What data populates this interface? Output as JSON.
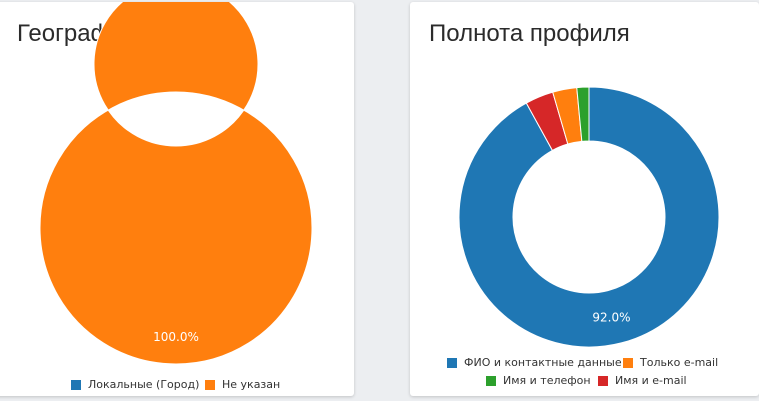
{
  "cards": [
    {
      "title": "География клиентов",
      "chart_data": {
        "type": "pie",
        "donut": true,
        "categories": [
          "Локальные (Город)",
          "Не указан"
        ],
        "values": [
          0.0,
          100.0
        ],
        "colors": [
          "#1f77b4",
          "#ff7f0e"
        ],
        "data_labels": [
          "",
          "100.0%"
        ],
        "legend": "bottom"
      }
    },
    {
      "title": "Полнота профиля",
      "chart_data": {
        "type": "pie",
        "donut": true,
        "categories": [
          "ФИО и контактные данные",
          "Только e-mail",
          "Имя и телефон",
          "Имя и e-mail"
        ],
        "values": [
          92.0,
          3.0,
          1.5,
          3.5
        ],
        "colors": [
          "#1f77b4",
          "#ff7f0e",
          "#2ca02c",
          "#d62728"
        ],
        "data_labels": [
          "92.0%",
          "",
          "",
          ""
        ],
        "legend": "bottom"
      }
    }
  ]
}
